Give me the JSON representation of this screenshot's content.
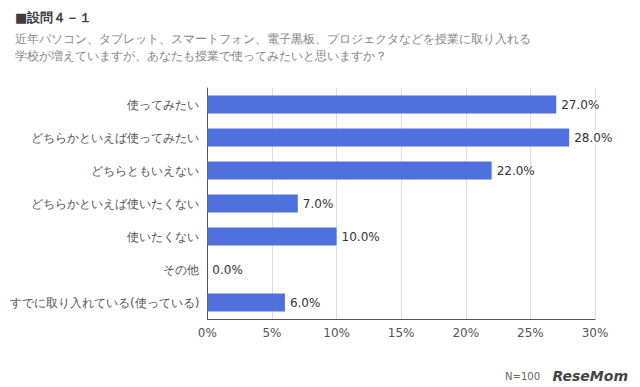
{
  "chart_data": {
    "type": "bar",
    "orientation": "horizontal",
    "title": "■設問４－１",
    "subtitle": [
      "近年パソコン、タブレット、スマートフォン、電子黒板、プロジェクタなどを授業に取り入れる",
      "学校が増えていますが、あなたも授業で使ってみたいと思いますか？"
    ],
    "categories": [
      "使ってみたい",
      "どちらかといえば使ってみたい",
      "どちらともいえない",
      "どちらかといえば使いたくない",
      "使いたくない",
      "その他",
      "すでに取り入れている(使っている)"
    ],
    "values": [
      27.0,
      28.0,
      22.0,
      7.0,
      10.0,
      0.0,
      6.0
    ],
    "value_labels": [
      "27.0%",
      "28.0%",
      "22.0%",
      "7.0%",
      "10.0%",
      "0.0%",
      "6.0%"
    ],
    "data_labels": true,
    "xlim": [
      0,
      30
    ],
    "xticks": [
      {
        "value": 0,
        "label": "0%"
      },
      {
        "value": 5,
        "label": "5%"
      },
      {
        "value": 10,
        "label": "10%"
      },
      {
        "value": 15,
        "label": "15%"
      },
      {
        "value": 20,
        "label": "20%"
      },
      {
        "value": 25,
        "label": "25%"
      },
      {
        "value": 30,
        "label": "30%"
      }
    ],
    "grid": true,
    "annotations": [
      "ReseMom",
      "N=100"
    ]
  }
}
